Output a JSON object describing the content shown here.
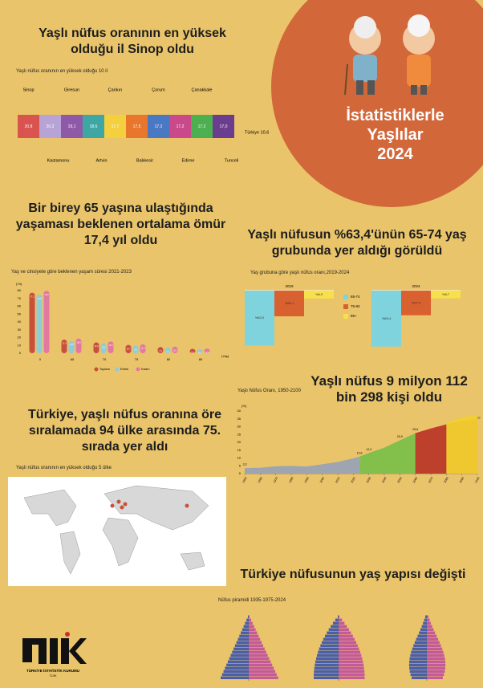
{
  "header": {
    "title": "İstatistiklerle Yaşlılar 2024"
  },
  "sections": [
    {
      "heading": "Yaşlı nüfus oranının en yüksek olduğu il Sinop oldu"
    },
    {
      "heading": "Bir birey 65 yaşına ulaştığında yaşaması beklenen ortalama ömür 17,4 yıl oldu"
    },
    {
      "heading": "Yaşlı nüfusun %63,4'ünün 65-74 yaş grubunda yer aldığı görüldü"
    },
    {
      "heading": "Yaşlı nüfus 9 milyon 112 bin 298 kişi oldu"
    },
    {
      "heading": "Türkiye, yaşlı nüfus oranına öre sıralamada 94 ülke arasında 75. sırada yer aldı"
    },
    {
      "heading": "Türkiye nüfusunun yaş yapısı değişti"
    }
  ],
  "chart_data": [
    {
      "type": "strip",
      "title": "Yaşlı nüfus oranının en yüksek olduğu 10 il",
      "categories": [
        "Sinop",
        "Kastamonu",
        "Giresun",
        "Artvin",
        "Çankırı",
        "Balıkesir",
        "Çorum",
        "Edirne",
        "Çanakkale",
        "Tunceli"
      ],
      "values": [
        20.8,
        20.2,
        19.1,
        18.6,
        17.7,
        17.5,
        17.2,
        17.2,
        17.2,
        17.0
      ],
      "value_labels": [
        "20,8",
        "20,2",
        "19,1",
        "18,6",
        "17,7",
        "17,5",
        "17,2",
        "17,2",
        "17,2",
        "17,0"
      ],
      "colors": [
        "#d9534f",
        "#b7a3d6",
        "#8e5aa8",
        "#3fa7a3",
        "#f4d03f",
        "#e8762d",
        "#4a78c2",
        "#c9498b",
        "#4caf50",
        "#6a3d8f"
      ],
      "annotation": "Türkiye 10,6"
    },
    {
      "type": "bar",
      "title": "Yaş ve cinsiyete göre beklenen yaşam süresi 2021-2023",
      "y_label": "(Yıl)",
      "x_label": "(Yaş)",
      "categories": [
        "0",
        "65",
        "70",
        "75",
        "80",
        "85"
      ],
      "series": [
        {
          "name": "Toplam",
          "color": "#c9503a",
          "values": [
            77.3,
            17.4,
            13.9,
            10.7,
            7.9,
            5.6
          ],
          "value_labels": [
            "77,3",
            "17,4",
            "13,9",
            "10,7",
            "7,9",
            "5,6"
          ]
        },
        {
          "name": "Erkek",
          "color": "#8fcbd9",
          "values": [
            74.8,
            15.9,
            12.6,
            9.6,
            7.1,
            5.1
          ],
          "value_labels": [
            "74,8",
            "15,9",
            "12,6",
            "9,6",
            "7,1",
            "5,1"
          ]
        },
        {
          "name": "Kadın",
          "color": "#e27aa0",
          "values": [
            79.9,
            18.8,
            15.0,
            11.5,
            8.5,
            5.9
          ],
          "value_labels": [
            "79,9",
            "18,8",
            "15,0",
            "11,5",
            "8,5",
            "5,9"
          ]
        }
      ],
      "ylim": [
        0,
        80
      ],
      "yticks": [
        0,
        10,
        20,
        30,
        40,
        50,
        60,
        70,
        80
      ]
    },
    {
      "type": "bar",
      "title": "Yaş grubuna göre yaşlı nüfus oranı,2019-2024",
      "categories": [
        "2019",
        "2024"
      ],
      "series": [
        {
          "name": "65-74",
          "color": "#7fd3dc",
          "values": [
            62.0,
            63.4
          ],
          "value_labels": [
            "%62,0",
            "%63,4"
          ]
        },
        {
          "name": "75-84",
          "color": "#d9602f",
          "values": [
            29.1,
            27.9
          ],
          "value_labels": [
            "%29,1",
            "%27,9"
          ]
        },
        {
          "name": "85+",
          "color": "#f7e04a",
          "values": [
            8.9,
            8.7
          ],
          "value_labels": [
            "%8,9",
            "%8,7"
          ]
        }
      ]
    },
    {
      "type": "area",
      "title": "Yaşlı Nüfus Oranı, 1950-2100",
      "y_label": "(%)",
      "x": [
        1950,
        1960,
        1970,
        1980,
        1990,
        2000,
        2010,
        2020,
        2024,
        2030,
        2040,
        2050,
        2060,
        2070,
        2080,
        2090,
        2100
      ],
      "series": [
        {
          "color": "#9aa3b5",
          "values": [
            3.3,
            3.5,
            4.4,
            4.7,
            4.3,
            5.7,
            7.2,
            9.5,
            10.6,
            null,
            null,
            null,
            null,
            null,
            null,
            null,
            null
          ],
          "value_labels": [
            "3,3",
            null,
            null,
            null,
            null,
            null,
            null,
            null,
            "10,6",
            null,
            null,
            null,
            null,
            null,
            null,
            null,
            null
          ]
        },
        {
          "color": "#7cc04a",
          "values": [
            null,
            null,
            null,
            null,
            null,
            null,
            null,
            null,
            10.6,
            12.9,
            16.3,
            20.9,
            25.6,
            27.3,
            29.9,
            32.4,
            33.0
          ],
          "value_labels": [
            null,
            null,
            null,
            null,
            null,
            null,
            null,
            null,
            null,
            "12,9",
            null,
            "20,9",
            "25,6",
            null,
            null,
            null,
            "33,0"
          ]
        },
        {
          "color": "#c0392b",
          "values": [
            null,
            null,
            null,
            null,
            null,
            null,
            null,
            null,
            null,
            null,
            null,
            null,
            25.6,
            28.6,
            31.2,
            33.4,
            34.5
          ]
        },
        {
          "color": "#f1d02f",
          "values": [
            null,
            null,
            null,
            null,
            null,
            null,
            null,
            null,
            null,
            null,
            null,
            null,
            null,
            null,
            32.0,
            35.5,
            37.4
          ]
        }
      ],
      "xlim": [
        1950,
        2100
      ],
      "xticks": [
        1950,
        1960,
        1970,
        1980,
        1990,
        2000,
        2010,
        2020,
        2030,
        2040,
        2050,
        2060,
        2070,
        2080,
        2090,
        2100
      ],
      "ylim": [
        0,
        40
      ],
      "yticks": [
        0,
        5,
        10,
        15,
        20,
        25,
        30,
        35,
        40
      ]
    }
  ],
  "map": {
    "title": "Yaşlı nüfus oranının en yüksek olduğu 5 ülke"
  },
  "pyramids": {
    "title": "Nüfus piramidi 1935-1975-2024"
  },
  "logo": {
    "name": "TÜİK",
    "subtitle": "TÜRKİYE İSTATİSTİK KURUMU"
  }
}
